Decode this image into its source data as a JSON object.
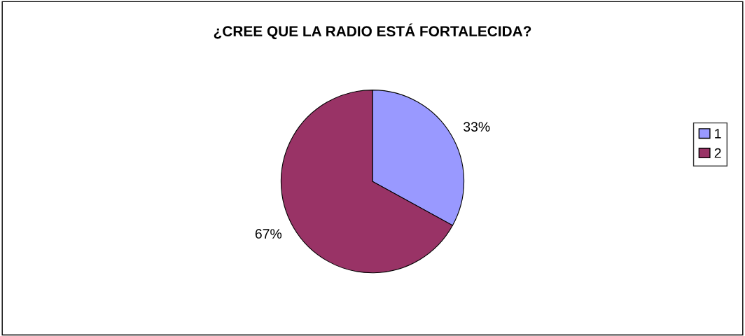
{
  "chart_data": {
    "type": "pie",
    "title": "¿CREE QUE LA RADIO ESTÁ FORTALECIDA?",
    "categories": [
      "1",
      "2"
    ],
    "values": [
      33,
      67
    ],
    "colors": [
      "#9999ff",
      "#993366"
    ],
    "value_labels": [
      "33%",
      "67%"
    ],
    "legend": "right"
  }
}
